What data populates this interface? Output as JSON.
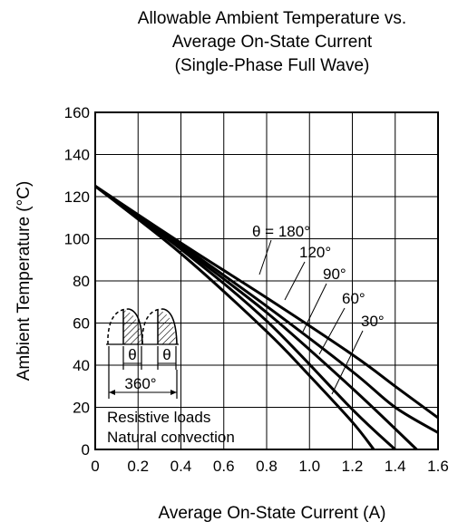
{
  "chart_data": {
    "type": "line",
    "title_lines": [
      "Allowable Ambient Temperature vs.",
      "Average On-State Current",
      "(Single-Phase Full Wave)"
    ],
    "xlabel": "Average On-State Current  (A)",
    "ylabel": "Ambient Temperature  (°C)",
    "xlim": [
      0,
      1.6
    ],
    "ylim": [
      0,
      160
    ],
    "x_ticks": [
      "0",
      "0.2",
      "0.4",
      "0.6",
      "0.8",
      "1.0",
      "1.2",
      "1.4",
      "1.6"
    ],
    "y_ticks": [
      "0",
      "20",
      "40",
      "60",
      "80",
      "100",
      "120",
      "140",
      "160"
    ],
    "grid": true,
    "series": [
      {
        "name": "θ = 180°",
        "x": [
          0,
          0.4,
          0.8,
          1.2,
          1.4,
          1.6
        ],
        "y": [
          125,
          98,
          72,
          45,
          30,
          15
        ]
      },
      {
        "name": "120°",
        "x": [
          0,
          0.4,
          0.8,
          1.2,
          1.4,
          1.6
        ],
        "y": [
          125,
          97,
          68,
          37,
          20,
          8
        ]
      },
      {
        "name": "90°",
        "x": [
          0,
          0.4,
          0.8,
          1.2,
          1.5
        ],
        "y": [
          125,
          96,
          65,
          29,
          0
        ]
      },
      {
        "name": "60°",
        "x": [
          0,
          0.4,
          0.8,
          1.2,
          1.4
        ],
        "y": [
          125,
          95,
          61,
          19,
          0
        ]
      },
      {
        "name": "30°",
        "x": [
          0,
          0.4,
          0.8,
          1.0,
          1.2,
          1.3
        ],
        "y": [
          125,
          93,
          56,
          35,
          13,
          0
        ]
      }
    ],
    "inset": {
      "theta_label": "θ",
      "period_label": "360°"
    },
    "notes": [
      "Resistive loads",
      "Natural convection"
    ]
  }
}
